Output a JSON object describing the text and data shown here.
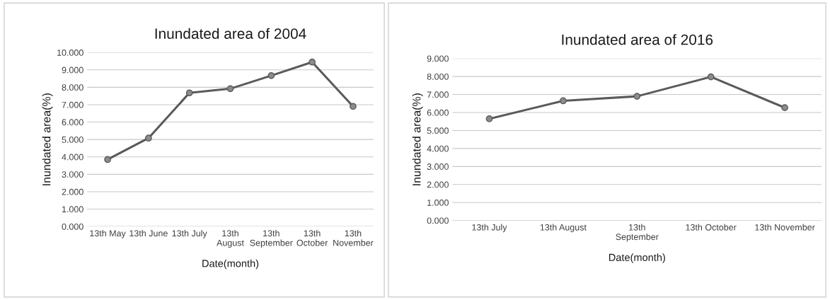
{
  "chart_data": [
    {
      "type": "line",
      "title": "Inundated area of 2004",
      "xlabel": "Date(month)",
      "ylabel": "Inundated area(%)",
      "categories": [
        "13th May",
        "13th June",
        "13th July",
        "13th\nAugust",
        "13th\nSeptember",
        "13th\nOctober",
        "13th\nNovember"
      ],
      "series": [
        {
          "color": "#5a5a5a",
          "values": [
            3.85,
            5.08,
            7.68,
            7.92,
            8.67,
            9.45,
            6.9
          ]
        }
      ],
      "ylim": [
        0,
        10
      ],
      "yticks": [
        {
          "value": 0,
          "label": "0.000"
        },
        {
          "value": 1,
          "label": "1.000"
        },
        {
          "value": 2,
          "label": "2.000"
        },
        {
          "value": 3,
          "label": "3.000"
        },
        {
          "value": 4,
          "label": "4.000"
        },
        {
          "value": 5,
          "label": "5.000"
        },
        {
          "value": 6,
          "label": "6.000"
        },
        {
          "value": 7,
          "label": "7.000"
        },
        {
          "value": 8,
          "label": "8.000"
        },
        {
          "value": 9,
          "label": "9.000"
        },
        {
          "value": 10,
          "label": "10.000"
        }
      ],
      "grid": "y",
      "marker": "circle",
      "line_style": "solid"
    },
    {
      "type": "line",
      "title": "Inundated area of 2016",
      "xlabel": "Date(month)",
      "ylabel": "Inundated area(%)",
      "categories": [
        "13th July",
        "13th August",
        "13th\nSeptember",
        "13th October",
        "13th November"
      ],
      "series": [
        {
          "color": "#5a5a5a",
          "values": [
            5.65,
            6.65,
            6.9,
            7.98,
            6.27
          ]
        }
      ],
      "ylim": [
        0,
        9
      ],
      "yticks": [
        {
          "value": 0,
          "label": "0.000"
        },
        {
          "value": 1,
          "label": "1.000"
        },
        {
          "value": 2,
          "label": "2.000"
        },
        {
          "value": 3,
          "label": "3.000"
        },
        {
          "value": 4,
          "label": "4.000"
        },
        {
          "value": 5,
          "label": "5.000"
        },
        {
          "value": 6,
          "label": "6.000"
        },
        {
          "value": 7,
          "label": "7.000"
        },
        {
          "value": 8,
          "label": "8.000"
        },
        {
          "value": 9,
          "label": "9.000"
        }
      ],
      "grid": "y",
      "marker": "circle",
      "line_style": "solid"
    }
  ]
}
